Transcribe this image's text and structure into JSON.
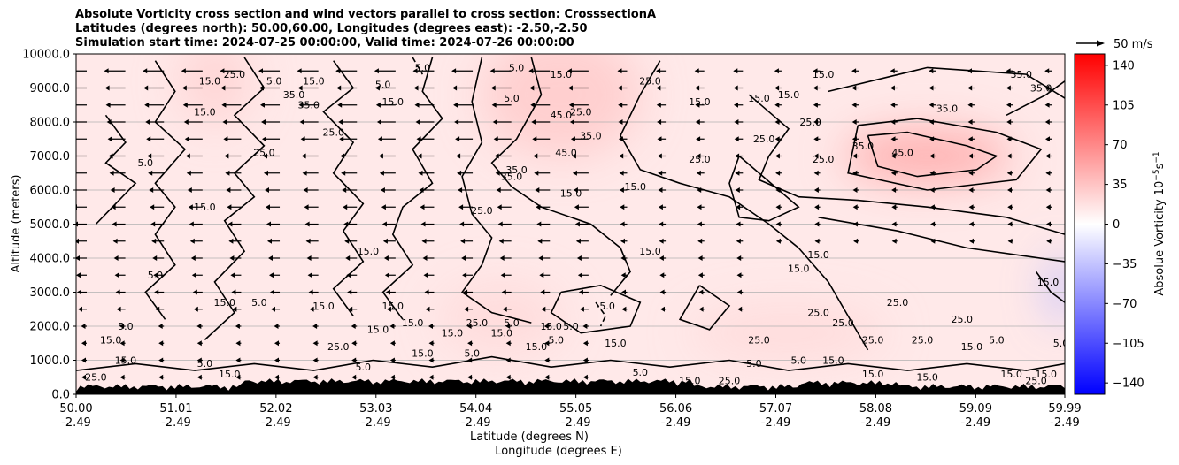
{
  "chart_data": {
    "type": "heatmap",
    "title_lines": [
      "Absolute Vorticity cross section and wind vectors parallel to cross section: CrosssectionA",
      "Latitudes (degrees north): 50.00,60.00, Longitudes (degrees east): -2.50,-2.50",
      "Simulation start time: 2024-07-25 00:00:00, Valid time: 2024-07-26 00:00:00"
    ],
    "ylabel": "Altitude (meters)",
    "xlabel_lines": [
      "Latitude (degrees N)",
      "Longitude (degrees E)"
    ],
    "xlim": [
      50.0,
      59.99
    ],
    "ylim": [
      0,
      10000
    ],
    "x_ticks": [
      {
        "lat": "50.00",
        "lon": "-2.49",
        "value": 50.0
      },
      {
        "lat": "51.01",
        "lon": "-2.49",
        "value": 51.01
      },
      {
        "lat": "52.02",
        "lon": "-2.49",
        "value": 52.02
      },
      {
        "lat": "53.03",
        "lon": "-2.49",
        "value": 53.03
      },
      {
        "lat": "54.04",
        "lon": "-2.49",
        "value": 54.04
      },
      {
        "lat": "55.05",
        "lon": "-2.49",
        "value": 55.05
      },
      {
        "lat": "56.06",
        "lon": "-2.49",
        "value": 56.06
      },
      {
        "lat": "57.07",
        "lon": "-2.49",
        "value": 57.07
      },
      {
        "lat": "58.08",
        "lon": "-2.49",
        "value": 58.08
      },
      {
        "lat": "59.09",
        "lon": "-2.49",
        "value": 59.09
      },
      {
        "lat": "59.99",
        "lon": "-2.49",
        "value": 59.99
      }
    ],
    "y_ticks": [
      {
        "label": "0.0",
        "value": 0
      },
      {
        "label": "1000.0",
        "value": 1000
      },
      {
        "label": "2000.0",
        "value": 2000
      },
      {
        "label": "3000.0",
        "value": 3000
      },
      {
        "label": "4000.0",
        "value": 4000
      },
      {
        "label": "5000.0",
        "value": 5000
      },
      {
        "label": "6000.0",
        "value": 6000
      },
      {
        "label": "7000.0",
        "value": 7000
      },
      {
        "label": "8000.0",
        "value": 8000
      },
      {
        "label": "9000.0",
        "value": 9000
      },
      {
        "label": "10000.0",
        "value": 10000
      }
    ],
    "grid": "horizontal",
    "colorbar": {
      "label": "Absolue Vorticity 10",
      "label_exponent": "−5",
      "label_unit": "s",
      "label_unit_exponent": "−1",
      "range": [
        -150,
        150
      ],
      "colors": {
        "low": "#0000ff",
        "mid": "#ffffff",
        "high": "#ff0000"
      },
      "ticks": [
        {
          "label": "140",
          "value": 140
        },
        {
          "label": "105",
          "value": 105
        },
        {
          "label": "70",
          "value": 70
        },
        {
          "label": "35",
          "value": 35
        },
        {
          "label": "0",
          "value": 0
        },
        {
          "label": "−35",
          "value": -35
        },
        {
          "label": "−70",
          "value": -70
        },
        {
          "label": "−105",
          "value": -105
        },
        {
          "label": "−140",
          "value": -140
        }
      ]
    },
    "quiver_key": {
      "label": "50 m/s"
    },
    "contour_levels": [
      -5.0,
      5.0,
      15.0,
      25.0,
      35.0,
      45.0
    ],
    "field_features": [
      {
        "name": "upper-right maximum",
        "x": 58.6,
        "y": 7000,
        "value": 50
      },
      {
        "name": "right-edge minimum",
        "x": 59.97,
        "y": 3100,
        "value": -40
      },
      {
        "name": "upper-centre band",
        "x": 54.9,
        "y": 8800,
        "value": 30
      },
      {
        "name": "left upper patch",
        "x": 51.4,
        "y": 9200,
        "value": 25
      },
      {
        "name": "central lower patch",
        "x": 54.3,
        "y": 2200,
        "value": 22
      },
      {
        "name": "low-level strip",
        "x": 57.2,
        "y": 1800,
        "value": 22
      }
    ],
    "contour_labels": [
      {
        "text": "35.0",
        "x": 59.55,
        "y": 9300
      },
      {
        "text": "35.0",
        "x": 59.75,
        "y": 8900
      },
      {
        "text": "35.0",
        "x": 58.8,
        "y": 8300
      },
      {
        "text": "45.0",
        "x": 58.35,
        "y": 7000
      },
      {
        "text": "35.0",
        "x": 57.95,
        "y": 7200
      },
      {
        "text": "25.0",
        "x": 57.42,
        "y": 7900
      },
      {
        "text": "25.0",
        "x": 56.95,
        "y": 7400
      },
      {
        "text": "25.0",
        "x": 57.55,
        "y": 6800
      },
      {
        "text": "15.0",
        "x": 57.55,
        "y": 9300
      },
      {
        "text": "15.0",
        "x": 57.2,
        "y": 8700
      },
      {
        "text": "15.0",
        "x": 56.9,
        "y": 8600
      },
      {
        "text": "15.0",
        "x": 56.3,
        "y": 8500
      },
      {
        "text": "25.0",
        "x": 55.8,
        "y": 9100
      },
      {
        "text": "25.0",
        "x": 56.3,
        "y": 6800
      },
      {
        "text": "15.0",
        "x": 55.65,
        "y": 6000
      },
      {
        "text": "15.0",
        "x": 55.0,
        "y": 5800
      },
      {
        "text": "45.0",
        "x": 54.9,
        "y": 8100
      },
      {
        "text": "45.0",
        "x": 54.95,
        "y": 7000
      },
      {
        "text": "35.0",
        "x": 55.2,
        "y": 7500
      },
      {
        "text": "25.0",
        "x": 55.1,
        "y": 8200
      },
      {
        "text": "35.0",
        "x": 54.45,
        "y": 6500
      },
      {
        "text": "25.0",
        "x": 54.1,
        "y": 5300
      },
      {
        "text": "5.0",
        "x": 54.4,
        "y": 8600
      },
      {
        "text": "5.0",
        "x": 54.45,
        "y": 9500
      },
      {
        "text": "15.0",
        "x": 54.9,
        "y": 9300
      },
      {
        "text": "15.0",
        "x": 55.8,
        "y": 4100
      },
      {
        "text": "15.0",
        "x": 57.5,
        "y": 4000
      },
      {
        "text": "15.0",
        "x": 57.3,
        "y": 3600
      },
      {
        "text": "5.0",
        "x": 53.5,
        "y": 9500
      },
      {
        "text": "5.0",
        "x": 53.1,
        "y": 9000
      },
      {
        "text": "15.0",
        "x": 53.2,
        "y": 8500
      },
      {
        "text": "15.0",
        "x": 52.4,
        "y": 9100
      },
      {
        "text": "35.0",
        "x": 52.2,
        "y": 8700
      },
      {
        "text": "35.0",
        "x": 52.35,
        "y": 8400
      },
      {
        "text": "25.0",
        "x": 52.6,
        "y": 7600
      },
      {
        "text": "5.0",
        "x": 52.0,
        "y": 9100
      },
      {
        "text": "25.0",
        "x": 51.6,
        "y": 9300
      },
      {
        "text": "15.0",
        "x": 51.35,
        "y": 9100
      },
      {
        "text": "15.0",
        "x": 51.3,
        "y": 8200
      },
      {
        "text": "25.0",
        "x": 51.9,
        "y": 7000
      },
      {
        "text": "5.0",
        "x": 50.7,
        "y": 6700
      },
      {
        "text": "15.0",
        "x": 51.3,
        "y": 5400
      },
      {
        "text": "15.0",
        "x": 52.95,
        "y": 4100
      },
      {
        "text": "5.0",
        "x": 50.8,
        "y": 3400
      },
      {
        "text": "15.0",
        "x": 51.5,
        "y": 2600
      },
      {
        "text": "5.0",
        "x": 51.85,
        "y": 2600
      },
      {
        "text": "15.0",
        "x": 52.5,
        "y": 2500
      },
      {
        "text": "15.0",
        "x": 53.2,
        "y": 2500
      },
      {
        "text": "15.0",
        "x": 50.35,
        "y": 1500
      },
      {
        "text": "5.0",
        "x": 50.5,
        "y": 1900
      },
      {
        "text": "15.0",
        "x": 50.5,
        "y": 900
      },
      {
        "text": "25.0",
        "x": 50.2,
        "y": 400
      },
      {
        "text": "5.0",
        "x": 51.3,
        "y": 800
      },
      {
        "text": "15.0",
        "x": 51.55,
        "y": 500
      },
      {
        "text": "25.0",
        "x": 52.65,
        "y": 1300
      },
      {
        "text": "15.0",
        "x": 53.05,
        "y": 1800
      },
      {
        "text": "15.0",
        "x": 53.4,
        "y": 2000
      },
      {
        "text": "5.0",
        "x": 52.9,
        "y": 700
      },
      {
        "text": "15.0",
        "x": 53.5,
        "y": 1100
      },
      {
        "text": "15.0",
        "x": 53.8,
        "y": 1700
      },
      {
        "text": "5.0",
        "x": 54.0,
        "y": 1100
      },
      {
        "text": "25.0",
        "x": 54.05,
        "y": 2000
      },
      {
        "text": "5.0",
        "x": 54.4,
        "y": 2000
      },
      {
        "text": "15.0",
        "x": 54.3,
        "y": 1700
      },
      {
        "text": "15.0",
        "x": 54.65,
        "y": 1300
      },
      {
        "text": "15.0",
        "x": 54.8,
        "y": 1900
      },
      {
        "text": "5.0",
        "x": 54.85,
        "y": 1500
      },
      {
        "text": "5.0",
        "x": 55.0,
        "y": 1900
      },
      {
        "text": "-5.0",
        "x": 55.35,
        "y": 2500
      },
      {
        "text": "15.0",
        "x": 55.45,
        "y": 1400
      },
      {
        "text": "5.0",
        "x": 55.7,
        "y": 550
      },
      {
        "text": "15.0",
        "x": 56.2,
        "y": 300
      },
      {
        "text": "25.0",
        "x": 56.6,
        "y": 300
      },
      {
        "text": "25.0",
        "x": 56.9,
        "y": 1500
      },
      {
        "text": "5.0",
        "x": 56.85,
        "y": 800
      },
      {
        "text": "5.0",
        "x": 57.3,
        "y": 900
      },
      {
        "text": "25.0",
        "x": 57.75,
        "y": 2000
      },
      {
        "text": "25.0",
        "x": 58.05,
        "y": 1500
      },
      {
        "text": "25.0",
        "x": 57.5,
        "y": 2300
      },
      {
        "text": "25.0",
        "x": 58.3,
        "y": 2600
      },
      {
        "text": "15.0",
        "x": 57.65,
        "y": 900
      },
      {
        "text": "25.0",
        "x": 58.55,
        "y": 1500
      },
      {
        "text": "15.0",
        "x": 58.05,
        "y": 500
      },
      {
        "text": "15.0",
        "x": 58.6,
        "y": 400
      },
      {
        "text": "25.0",
        "x": 58.95,
        "y": 2100
      },
      {
        "text": "15.0",
        "x": 59.05,
        "y": 1300
      },
      {
        "text": "5.0",
        "x": 59.3,
        "y": 1500
      },
      {
        "text": "15.0",
        "x": 59.45,
        "y": 500
      },
      {
        "text": "15.0",
        "x": 59.8,
        "y": 500
      },
      {
        "text": "25.0",
        "x": 59.7,
        "y": 300
      },
      {
        "text": "5.0",
        "x": 59.95,
        "y": 1400
      },
      {
        "text": "15.0",
        "x": 59.82,
        "y": 3200
      },
      {
        "text": "35.0",
        "x": 54.4,
        "y": 6300
      }
    ]
  }
}
